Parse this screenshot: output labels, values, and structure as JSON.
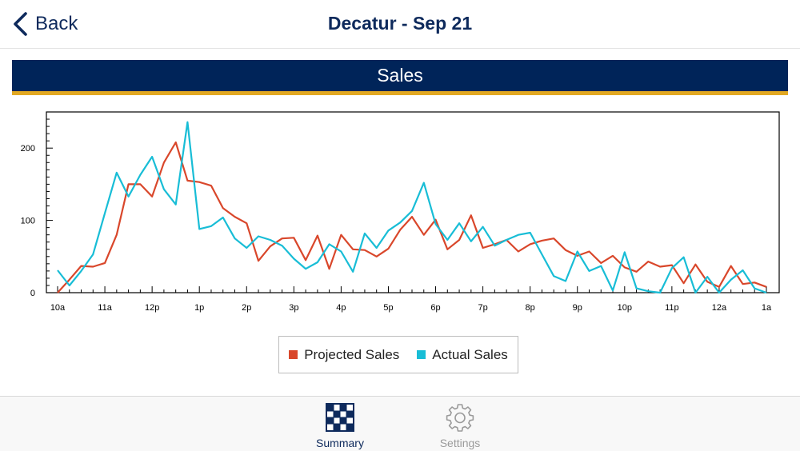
{
  "nav": {
    "back_label": "Back",
    "title": "Decatur - Sep 21"
  },
  "banner": {
    "title": "Sales"
  },
  "colors": {
    "projected": "#d9472b",
    "actual": "#18bdd6",
    "navy": "#002459",
    "gold": "#e2a822"
  },
  "chart_data": {
    "type": "line",
    "title": "Sales",
    "x_tick_labels": [
      "10a",
      "11a",
      "12p",
      "1p",
      "2p",
      "3p",
      "4p",
      "5p",
      "6p",
      "7p",
      "8p",
      "9p",
      "10p",
      "11p",
      "12a",
      "1a"
    ],
    "y_tick_labels": [
      "0",
      "100",
      "200"
    ],
    "ylim": [
      0,
      250
    ],
    "x_range_hours": [
      10,
      25
    ],
    "series": [
      {
        "name": "Projected Sales",
        "color": "#d9472b",
        "x": [
          10,
          10.25,
          10.5,
          10.75,
          11,
          11.25,
          11.5,
          11.75,
          12,
          12.25,
          12.5,
          12.75,
          13,
          13.25,
          13.5,
          13.75,
          14,
          14.25,
          14.5,
          14.75,
          15,
          15.25,
          15.5,
          15.75,
          16,
          16.25,
          16.5,
          16.75,
          17,
          17.25,
          17.5,
          17.75,
          18,
          18.25,
          18.5,
          18.75,
          19,
          19.25,
          19.5,
          19.75,
          20,
          20.25,
          20.5,
          20.75,
          21,
          21.25,
          21.5,
          21.75,
          22,
          22.25,
          22.5,
          22.75,
          23,
          23.25,
          23.5,
          23.75,
          24,
          24.25,
          24.5,
          24.75,
          25
        ],
        "values": [
          0,
          18,
          37,
          36,
          41,
          80,
          150,
          150,
          133,
          180,
          208,
          155,
          153,
          148,
          117,
          105,
          96,
          44,
          64,
          75,
          76,
          45,
          79,
          33,
          80,
          60,
          59,
          50,
          61,
          87,
          105,
          80,
          101,
          60,
          73,
          107,
          62,
          67,
          73,
          57,
          67,
          72,
          75,
          59,
          51,
          57,
          41,
          51,
          35,
          29,
          43,
          36,
          38,
          13,
          39,
          15,
          8,
          37,
          12,
          14,
          8
        ]
      },
      {
        "name": "Actual Sales",
        "color": "#18bdd6",
        "x": [
          10,
          10.25,
          10.5,
          10.75,
          11,
          11.25,
          11.5,
          11.75,
          12,
          12.25,
          12.5,
          12.75,
          13,
          13.25,
          13.5,
          13.75,
          14,
          14.25,
          14.5,
          14.75,
          15,
          15.25,
          15.5,
          15.75,
          16,
          16.25,
          16.5,
          16.75,
          17,
          17.25,
          17.5,
          17.75,
          18,
          18.25,
          18.5,
          18.75,
          19,
          19.25,
          19.5,
          19.75,
          20,
          20.25,
          20.5,
          20.75,
          21,
          21.25,
          21.5,
          21.75,
          22,
          22.25,
          22.5,
          22.75,
          23,
          23.25,
          23.5,
          23.75,
          24,
          24.25,
          24.5,
          24.75,
          25
        ],
        "values": [
          31,
          10,
          30,
          53,
          110,
          166,
          133,
          163,
          188,
          143,
          122,
          236,
          88,
          92,
          104,
          75,
          62,
          78,
          73,
          65,
          47,
          33,
          42,
          67,
          57,
          29,
          82,
          62,
          86,
          97,
          113,
          152,
          95,
          73,
          96,
          71,
          91,
          65,
          73,
          80,
          83,
          53,
          23,
          16,
          57,
          30,
          37,
          3,
          56,
          6,
          2,
          0,
          34,
          49,
          0,
          22,
          0,
          18,
          31,
          6,
          0
        ]
      }
    ],
    "legend": [
      "Projected Sales",
      "Actual Sales"
    ],
    "legend_position": "bottom",
    "grid": false
  },
  "tabs": [
    {
      "label": "Summary",
      "icon": "grid-icon",
      "active": true
    },
    {
      "label": "Settings",
      "icon": "gear-icon",
      "active": false
    }
  ]
}
